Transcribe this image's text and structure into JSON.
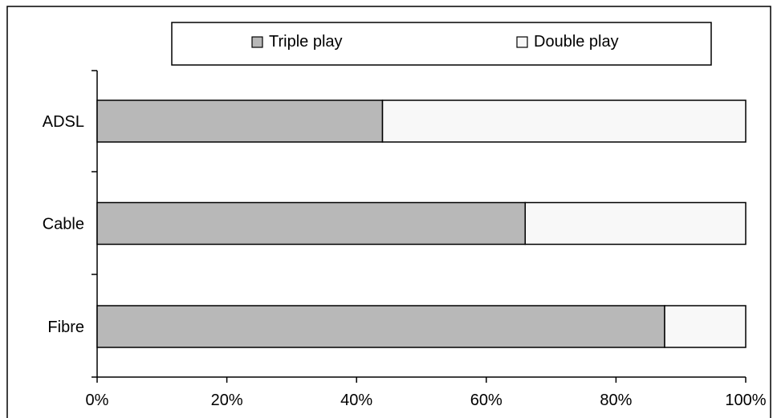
{
  "chart_data": {
    "type": "bar",
    "orientation": "horizontal",
    "stacked": true,
    "percent_stacked": true,
    "categories": [
      "ADSL",
      "Cable",
      "Fibre"
    ],
    "series": [
      {
        "name": "Triple play",
        "values": [
          44,
          66,
          87.5
        ],
        "color": "#b8b8b8"
      },
      {
        "name": "Double play",
        "values": [
          56,
          34,
          12.5
        ],
        "color": "#f8f8f8"
      }
    ],
    "x_ticks": [
      "0%",
      "20%",
      "40%",
      "60%",
      "80%",
      "100%"
    ],
    "xlim": [
      0,
      100
    ],
    "grid": false,
    "legend_position": "top"
  }
}
